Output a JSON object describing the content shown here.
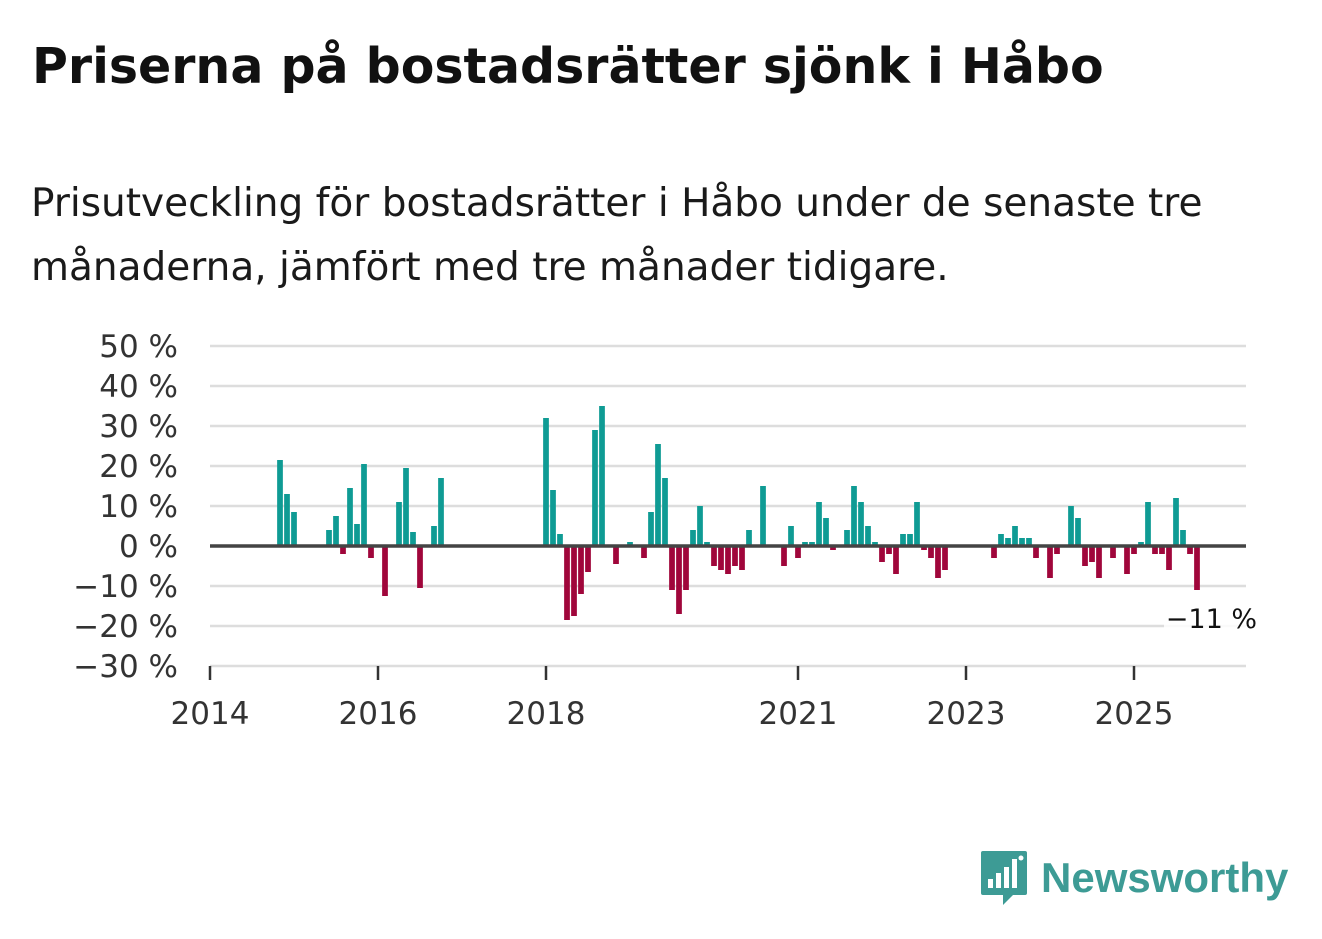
{
  "title": "Priserna på bostadsrätter sjönk i Håbo",
  "subtitle": "Prisutveckling för bostadsrätter i Håbo under de senaste tre månaderna, jämfört med tre månader tidigare.",
  "brand": {
    "name": "Newsworthy",
    "color": "#3d9b95",
    "icon": "newsworthy-logo-icon"
  },
  "colors": {
    "positive": "#0f9b94",
    "negative": "#a0063b",
    "grid": "#dddddd",
    "zero": "#444444"
  },
  "chart_data": {
    "type": "bar",
    "title": "Priserna på bostadsrätter sjönk i Håbo",
    "xlabel": "",
    "ylabel": "",
    "ylim": [
      -30,
      50
    ],
    "xlim": [
      "2014-01",
      "2026-05"
    ],
    "grid": true,
    "yticks": [
      50,
      40,
      30,
      20,
      10,
      0,
      -10,
      -20,
      -30
    ],
    "ytick_labels": [
      "50 %",
      "40 %",
      "30 %",
      "20 %",
      "10 %",
      "0 %",
      "−10 %",
      "−20 %",
      "−30 %"
    ],
    "xticks": [
      "2014-01",
      "2016-01",
      "2018-01",
      "2021-01",
      "2023-01",
      "2025-01"
    ],
    "xtick_labels": [
      "2014",
      "2016",
      "2018",
      "2021",
      "2023",
      "2025"
    ],
    "annotation": {
      "text": "−11 %",
      "date": "2025-12",
      "value": -11
    },
    "series": [
      {
        "name": "Prisutveckling",
        "points": [
          {
            "date": "2014-11",
            "value": 21.5
          },
          {
            "date": "2014-12",
            "value": 13
          },
          {
            "date": "2015-01",
            "value": 8.5
          },
          {
            "date": "2015-06",
            "value": 4
          },
          {
            "date": "2015-07",
            "value": 7.5
          },
          {
            "date": "2015-08",
            "value": -2
          },
          {
            "date": "2015-09",
            "value": 14.5
          },
          {
            "date": "2015-10",
            "value": 5.5
          },
          {
            "date": "2015-11",
            "value": 20.5
          },
          {
            "date": "2015-12",
            "value": -3
          },
          {
            "date": "2016-02",
            "value": -12.5
          },
          {
            "date": "2016-04",
            "value": 11
          },
          {
            "date": "2016-05",
            "value": 19.5
          },
          {
            "date": "2016-06",
            "value": 3.5
          },
          {
            "date": "2016-07",
            "value": -10.5
          },
          {
            "date": "2016-09",
            "value": 5
          },
          {
            "date": "2016-10",
            "value": 17
          },
          {
            "date": "2018-01",
            "value": 32
          },
          {
            "date": "2018-02",
            "value": 14
          },
          {
            "date": "2018-03",
            "value": 3
          },
          {
            "date": "2018-04",
            "value": -18.5
          },
          {
            "date": "2018-05",
            "value": -17.5
          },
          {
            "date": "2018-06",
            "value": -12
          },
          {
            "date": "2018-07",
            "value": -6.5
          },
          {
            "date": "2018-08",
            "value": 29
          },
          {
            "date": "2018-09",
            "value": 35
          },
          {
            "date": "2018-11",
            "value": -4.5
          },
          {
            "date": "2019-01",
            "value": 1
          },
          {
            "date": "2019-03",
            "value": -3
          },
          {
            "date": "2019-04",
            "value": 8.5
          },
          {
            "date": "2019-05",
            "value": 25.5
          },
          {
            "date": "2019-06",
            "value": 17
          },
          {
            "date": "2019-07",
            "value": -11
          },
          {
            "date": "2019-08",
            "value": -17
          },
          {
            "date": "2019-09",
            "value": -11
          },
          {
            "date": "2019-10",
            "value": 4
          },
          {
            "date": "2019-11",
            "value": 10
          },
          {
            "date": "2019-12",
            "value": 1
          },
          {
            "date": "2020-01",
            "value": -5
          },
          {
            "date": "2020-02",
            "value": -6
          },
          {
            "date": "2020-03",
            "value": -7
          },
          {
            "date": "2020-04",
            "value": -5
          },
          {
            "date": "2020-05",
            "value": -6
          },
          {
            "date": "2020-06",
            "value": 4
          },
          {
            "date": "2020-08",
            "value": 15
          },
          {
            "date": "2020-11",
            "value": -5
          },
          {
            "date": "2020-12",
            "value": 5
          },
          {
            "date": "2021-01",
            "value": -3
          },
          {
            "date": "2021-02",
            "value": 1
          },
          {
            "date": "2021-03",
            "value": 1
          },
          {
            "date": "2021-04",
            "value": 11
          },
          {
            "date": "2021-05",
            "value": 7
          },
          {
            "date": "2021-06",
            "value": -1
          },
          {
            "date": "2021-08",
            "value": 4
          },
          {
            "date": "2021-09",
            "value": 15
          },
          {
            "date": "2021-10",
            "value": 11
          },
          {
            "date": "2021-11",
            "value": 5
          },
          {
            "date": "2021-12",
            "value": 1
          },
          {
            "date": "2022-01",
            "value": -4
          },
          {
            "date": "2022-02",
            "value": -2
          },
          {
            "date": "2022-03",
            "value": -7
          },
          {
            "date": "2022-04",
            "value": 3
          },
          {
            "date": "2022-05",
            "value": 3
          },
          {
            "date": "2022-06",
            "value": 11
          },
          {
            "date": "2022-07",
            "value": -1
          },
          {
            "date": "2022-08",
            "value": -3
          },
          {
            "date": "2022-09",
            "value": -8
          },
          {
            "date": "2022-10",
            "value": -6
          },
          {
            "date": "2023-05",
            "value": -3
          },
          {
            "date": "2023-06",
            "value": 3
          },
          {
            "date": "2023-07",
            "value": 2
          },
          {
            "date": "2023-08",
            "value": 5
          },
          {
            "date": "2023-09",
            "value": 2
          },
          {
            "date": "2023-10",
            "value": 2
          },
          {
            "date": "2023-11",
            "value": -3
          },
          {
            "date": "2024-01",
            "value": -8
          },
          {
            "date": "2024-02",
            "value": -2
          },
          {
            "date": "2024-04",
            "value": 10
          },
          {
            "date": "2024-05",
            "value": 7
          },
          {
            "date": "2024-06",
            "value": -5
          },
          {
            "date": "2024-07",
            "value": -4
          },
          {
            "date": "2024-08",
            "value": -8
          },
          {
            "date": "2024-10",
            "value": -3
          },
          {
            "date": "2024-12",
            "value": -7
          },
          {
            "date": "2025-01",
            "value": -2
          },
          {
            "date": "2025-02",
            "value": 1
          },
          {
            "date": "2025-03",
            "value": 11
          },
          {
            "date": "2025-04",
            "value": -2
          },
          {
            "date": "2025-05",
            "value": -2
          },
          {
            "date": "2025-06",
            "value": -6
          },
          {
            "date": "2025-07",
            "value": 12
          },
          {
            "date": "2025-08",
            "value": 4
          },
          {
            "date": "2025-09",
            "value": -2
          },
          {
            "date": "2025-10",
            "value": -11
          }
        ]
      }
    ]
  }
}
